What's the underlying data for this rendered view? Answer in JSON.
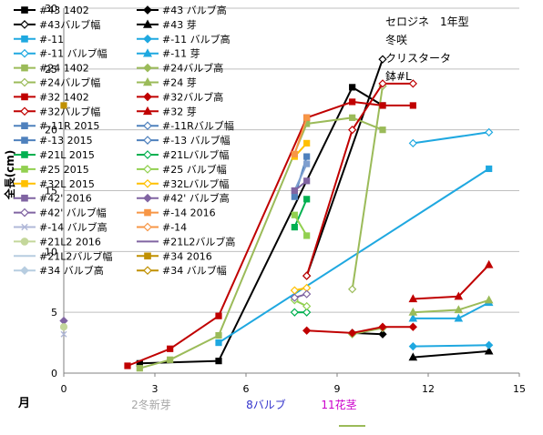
{
  "chart_data": {
    "type": "line",
    "title_lines": [
      "セロジネ　1年型",
      "冬咲",
      "クリスタータ",
      "鉢#L"
    ],
    "ylabel": "全長(cm)",
    "xlabel": "月",
    "xlim": [
      0,
      15
    ],
    "ylim": [
      0,
      30
    ],
    "xticks": [
      0,
      3,
      6,
      9,
      12,
      15
    ],
    "yticks": [
      0,
      5,
      10,
      15,
      20,
      25,
      30
    ],
    "grid": "horizontal",
    "legend_position": "left",
    "annotations": [
      {
        "text": "2冬新芽",
        "color": "#a6a6a6"
      },
      {
        "text": "8バルブ",
        "color": "#3333cc"
      },
      {
        "text": "11花茎",
        "color": "#cc00cc"
      }
    ],
    "legend": [
      {
        "name": "#43 1402",
        "color": "#000000",
        "marker": "square",
        "filled": true
      },
      {
        "name": "#43 バルブ高",
        "color": "#000000",
        "marker": "diamond",
        "filled": true
      },
      {
        "name": "#43バルブ幅",
        "color": "#000000",
        "marker": "diamond",
        "filled": false
      },
      {
        "name": "#43 芽",
        "color": "#000000",
        "marker": "triangle",
        "filled": true
      },
      {
        "name": "#-11",
        "color": "#1fa8e0",
        "marker": "square",
        "filled": true
      },
      {
        "name": "#-11 バルブ高",
        "color": "#1fa8e0",
        "marker": "diamond",
        "filled": true
      },
      {
        "name": "#-11 バルブ幅",
        "color": "#1fa8e0",
        "marker": "diamond",
        "filled": false
      },
      {
        "name": "#-11 芽",
        "color": "#1fa8e0",
        "marker": "triangle",
        "filled": true
      },
      {
        "name": "#24 1402",
        "color": "#9bbb59",
        "marker": "square",
        "filled": true
      },
      {
        "name": "#24バルブ高",
        "color": "#9bbb59",
        "marker": "diamond",
        "filled": true
      },
      {
        "name": "#24バルブ幅",
        "color": "#9bbb59",
        "marker": "diamond",
        "filled": false
      },
      {
        "name": "#24 芽",
        "color": "#9bbb59",
        "marker": "triangle",
        "filled": true
      },
      {
        "name": "#32 1402",
        "color": "#c00000",
        "marker": "square",
        "filled": true
      },
      {
        "name": "#32バルブ高",
        "color": "#c00000",
        "marker": "diamond",
        "filled": true
      },
      {
        "name": "#32バルブ幅",
        "color": "#c00000",
        "marker": "diamond",
        "filled": false
      },
      {
        "name": "#32 芽",
        "color": "#c00000",
        "marker": "triangle",
        "filled": true
      },
      {
        "name": "#-11R 2015",
        "color": "#4f81bd",
        "marker": "square",
        "filled": true
      },
      {
        "name": "#-11Rバルブ幅",
        "color": "#4f81bd",
        "marker": "diamond",
        "filled": false
      },
      {
        "name": "#-13 2015",
        "color": "#4f81bd",
        "marker": "square",
        "filled": true
      },
      {
        "name": "#-13 バルブ幅",
        "color": "#4f81bd",
        "marker": "diamond",
        "filled": false
      },
      {
        "name": "#21L 2015",
        "color": "#00b050",
        "marker": "square",
        "filled": true
      },
      {
        "name": "#21Lバルブ幅",
        "color": "#00b050",
        "marker": "diamond",
        "filled": false
      },
      {
        "name": "#25 2015",
        "color": "#92d050",
        "marker": "square",
        "filled": true
      },
      {
        "name": "#25 バルブ幅",
        "color": "#92d050",
        "marker": "diamond",
        "filled": false
      },
      {
        "name": "#32L 2015",
        "color": "#ffc000",
        "marker": "square",
        "filled": true
      },
      {
        "name": "#32Lバルブ幅",
        "color": "#ffc000",
        "marker": "diamond",
        "filled": false
      },
      {
        "name": "#42' 2016",
        "color": "#8064a2",
        "marker": "square",
        "filled": true
      },
      {
        "name": "#42' バルブ高",
        "color": "#8064a2",
        "marker": "diamond",
        "filled": true
      },
      {
        "name": "#42' バルブ幅",
        "color": "#8064a2",
        "marker": "diamond",
        "filled": false
      },
      {
        "name": "#-14 2016",
        "color": "#f79646",
        "marker": "square",
        "filled": true
      },
      {
        "name": "#-14 バルブ高",
        "color": "#b0b8d8",
        "marker": "x",
        "filled": false
      },
      {
        "name": "#-14",
        "color": "#f79646",
        "marker": "diamond",
        "filled": false
      },
      {
        "name": "#21L2 2016",
        "color": "#c4d79b",
        "marker": "circle",
        "filled": true
      },
      {
        "name": "#21L2バルブ高",
        "color": "#8064a2",
        "marker": "line",
        "filled": false
      },
      {
        "name": "#21L2バルブ幅",
        "color": "#b7cde0",
        "marker": "line",
        "filled": false
      },
      {
        "name": "#34 2016",
        "color": "#c09000",
        "marker": "square",
        "filled": true
      },
      {
        "name": "#34 バルブ高",
        "color": "#b7cde0",
        "marker": "diamond",
        "filled": true
      },
      {
        "name": "#34 バルブ幅",
        "color": "#c09000",
        "marker": "diamond",
        "filled": false
      }
    ],
    "series": [
      {
        "name": "#43 1402",
        "color": "#000000",
        "marker": "square",
        "filled": true,
        "points": [
          [
            2.5,
            0.8
          ],
          [
            5.1,
            1.0
          ],
          [
            9.5,
            23.5
          ],
          [
            10.5,
            22.0
          ]
        ]
      },
      {
        "name": "#43 バルブ高",
        "color": "#000000",
        "marker": "diamond",
        "filled": true,
        "points": [
          [
            9.5,
            3.3
          ],
          [
            10.5,
            3.2
          ]
        ]
      },
      {
        "name": "#43バルブ幅",
        "color": "#000000",
        "marker": "diamond",
        "filled": false,
        "points": [
          [
            8.0,
            8.0
          ],
          [
            10.5,
            25.8
          ]
        ]
      },
      {
        "name": "#43 芽",
        "color": "#000000",
        "marker": "triangle",
        "filled": true,
        "points": [
          [
            11.5,
            1.3
          ],
          [
            14.0,
            1.8
          ]
        ]
      },
      {
        "name": "#-11",
        "color": "#1fa8e0",
        "marker": "square",
        "filled": true,
        "points": [
          [
            5.1,
            2.5
          ],
          [
            14.0,
            16.8
          ]
        ]
      },
      {
        "name": "#-11 バルブ高",
        "color": "#1fa8e0",
        "marker": "diamond",
        "filled": true,
        "points": [
          [
            11.5,
            2.2
          ],
          [
            14.0,
            2.3
          ]
        ]
      },
      {
        "name": "#-11 バルブ幅",
        "color": "#1fa8e0",
        "marker": "diamond",
        "filled": false,
        "points": [
          [
            11.5,
            18.9
          ],
          [
            14.0,
            19.8
          ]
        ]
      },
      {
        "name": "#-11 芽",
        "color": "#1fa8e0",
        "marker": "triangle",
        "filled": true,
        "points": [
          [
            11.5,
            4.5
          ],
          [
            13.0,
            4.5
          ],
          [
            14.0,
            5.8
          ]
        ]
      },
      {
        "name": "#24 1402",
        "color": "#9bbb59",
        "marker": "square",
        "filled": true,
        "points": [
          [
            2.5,
            0.4
          ],
          [
            3.5,
            1.1
          ],
          [
            5.1,
            3.1
          ],
          [
            8.0,
            20.5
          ],
          [
            9.5,
            21.0
          ],
          [
            10.5,
            20.0
          ]
        ]
      },
      {
        "name": "#24バルブ高",
        "color": "#9bbb59",
        "marker": "diamond",
        "filled": true,
        "points": [
          [
            9.5,
            3.2
          ],
          [
            10.5,
            3.7
          ]
        ]
      },
      {
        "name": "#24バルブ幅",
        "color": "#9bbb59",
        "marker": "diamond",
        "filled": false,
        "points": [
          [
            9.5,
            6.9
          ],
          [
            10.5,
            23.6
          ]
        ]
      },
      {
        "name": "#24 芽",
        "color": "#9bbb59",
        "marker": "triangle",
        "filled": true,
        "points": [
          [
            11.5,
            5.0
          ],
          [
            13.0,
            5.2
          ],
          [
            14.0,
            6.0
          ]
        ]
      },
      {
        "name": "#32 1402",
        "color": "#c00000",
        "marker": "square",
        "filled": true,
        "points": [
          [
            2.1,
            0.6
          ],
          [
            3.5,
            2.0
          ],
          [
            5.1,
            4.7
          ],
          [
            8.0,
            21.0
          ],
          [
            9.5,
            22.3
          ],
          [
            10.5,
            22.0
          ],
          [
            11.5,
            22.0
          ]
        ]
      },
      {
        "name": "#32バルブ高",
        "color": "#c00000",
        "marker": "diamond",
        "filled": true,
        "points": [
          [
            8.0,
            3.5
          ],
          [
            9.5,
            3.3
          ],
          [
            10.5,
            3.8
          ],
          [
            11.5,
            3.8
          ]
        ]
      },
      {
        "name": "#32バルブ幅",
        "color": "#c00000",
        "marker": "diamond",
        "filled": false,
        "points": [
          [
            8.0,
            8.0
          ],
          [
            9.5,
            20.0
          ],
          [
            10.5,
            23.8
          ],
          [
            11.5,
            23.8
          ]
        ]
      },
      {
        "name": "#32 芽",
        "color": "#c00000",
        "marker": "triangle",
        "filled": true,
        "points": [
          [
            11.5,
            6.1
          ],
          [
            13.0,
            6.3
          ],
          [
            14.0,
            8.9
          ]
        ]
      },
      {
        "name": "#-11R 2015",
        "color": "#4f81bd",
        "marker": "square",
        "filled": true,
        "points": [
          [
            7.6,
            14.5
          ],
          [
            8.0,
            17.8
          ]
        ]
      },
      {
        "name": "#-13 2015",
        "color": "#7f9fcf",
        "marker": "square",
        "filled": true,
        "points": [
          [
            7.6,
            15.0
          ],
          [
            8.0,
            17.2
          ]
        ]
      },
      {
        "name": "#21L 2015",
        "color": "#00b050",
        "marker": "square",
        "filled": true,
        "points": [
          [
            7.6,
            12.0
          ],
          [
            8.0,
            14.3
          ]
        ]
      },
      {
        "name": "#21Lバルブ幅",
        "color": "#00b050",
        "marker": "diamond",
        "filled": false,
        "points": [
          [
            7.6,
            5.0
          ],
          [
            8.0,
            5.0
          ]
        ]
      },
      {
        "name": "#25 2015",
        "color": "#92d050",
        "marker": "square",
        "filled": true,
        "points": [
          [
            7.6,
            13.0
          ],
          [
            8.0,
            11.3
          ]
        ]
      },
      {
        "name": "#25 バルブ幅",
        "color": "#92d050",
        "marker": "diamond",
        "filled": false,
        "points": [
          [
            7.6,
            6.0
          ],
          [
            8.0,
            5.5
          ]
        ]
      },
      {
        "name": "#32L 2015",
        "color": "#ffc000",
        "marker": "square",
        "filled": true,
        "points": [
          [
            7.6,
            17.8
          ],
          [
            8.0,
            18.9
          ]
        ]
      },
      {
        "name": "#32Lバルブ幅",
        "color": "#ffc000",
        "marker": "diamond",
        "filled": false,
        "points": [
          [
            7.6,
            6.8
          ],
          [
            8.0,
            7.0
          ]
        ]
      },
      {
        "name": "#42' 2016",
        "color": "#8064a2",
        "marker": "square",
        "filled": true,
        "points": [
          [
            7.6,
            15.0
          ],
          [
            8.0,
            15.8
          ]
        ]
      },
      {
        "name": "#42' バルブ高",
        "color": "#8064a2",
        "marker": "diamond",
        "filled": true,
        "points": [
          [
            0.0,
            4.3
          ]
        ]
      },
      {
        "name": "#42' バルブ幅",
        "color": "#8064a2",
        "marker": "diamond",
        "filled": false,
        "points": [
          [
            7.6,
            6.2
          ],
          [
            8.0,
            6.5
          ]
        ]
      },
      {
        "name": "#-14 2016",
        "color": "#f79646",
        "marker": "square",
        "filled": true,
        "points": [
          [
            7.6,
            18.0
          ],
          [
            8.0,
            21.0
          ]
        ]
      },
      {
        "name": "#-14 バルブ高",
        "color": "#b0b8d8",
        "marker": "x",
        "filled": false,
        "points": [
          [
            0.0,
            3.2
          ]
        ]
      },
      {
        "name": "#21L2 2016",
        "color": "#c4d79b",
        "marker": "circle",
        "filled": true,
        "points": [
          [
            0.0,
            3.8
          ]
        ]
      },
      {
        "name": "#34 2016",
        "color": "#c09000",
        "marker": "square",
        "filled": true,
        "points": [
          [
            0.0,
            22.0
          ]
        ]
      }
    ]
  }
}
